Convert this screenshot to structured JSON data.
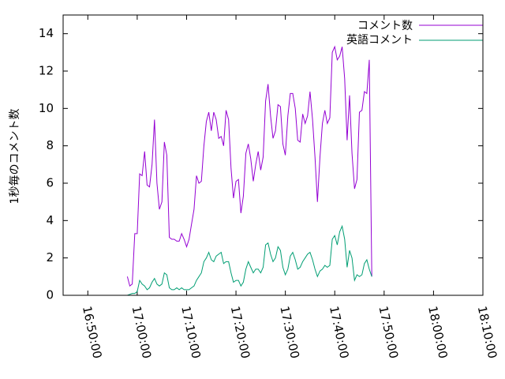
{
  "chart_data": {
    "type": "line",
    "title": "",
    "xlabel": "",
    "ylabel": "1秒毎のコメント数",
    "xlim": [
      "16:45:00",
      "18:10:00"
    ],
    "ylim": [
      0,
      15
    ],
    "x_ticks": [
      "16:50:00",
      "17:00:00",
      "17:10:00",
      "17:20:00",
      "17:30:00",
      "17:40:00",
      "17:50:00",
      "18:00:00",
      "18:10:00"
    ],
    "y_ticks": [
      "0",
      "2",
      "4",
      "6",
      "8",
      "10",
      "12",
      "14"
    ],
    "legend_position": "top-right",
    "grid": false,
    "series": [
      {
        "name": "コメント数",
        "color": "#9400d3",
        "points": [
          [
            "16:58:00",
            1.0
          ],
          [
            "16:58:30",
            0.5
          ],
          [
            "16:59:00",
            0.6
          ],
          [
            "16:59:30",
            3.3
          ],
          [
            "17:00:00",
            3.3
          ],
          [
            "17:00:30",
            6.5
          ],
          [
            "17:01:00",
            6.4
          ],
          [
            "17:01:30",
            7.7
          ],
          [
            "17:02:00",
            5.9
          ],
          [
            "17:02:30",
            5.8
          ],
          [
            "17:03:00",
            7.0
          ],
          [
            "17:03:30",
            9.4
          ],
          [
            "17:04:00",
            6.0
          ],
          [
            "17:04:30",
            4.6
          ],
          [
            "17:05:00",
            5.0
          ],
          [
            "17:05:30",
            8.2
          ],
          [
            "17:06:00",
            7.5
          ],
          [
            "17:06:30",
            3.1
          ],
          [
            "17:07:00",
            3.0
          ],
          [
            "17:07:30",
            3.0
          ],
          [
            "17:08:00",
            2.9
          ],
          [
            "17:08:30",
            2.9
          ],
          [
            "17:09:00",
            3.3
          ],
          [
            "17:09:30",
            3.0
          ],
          [
            "17:10:00",
            2.6
          ],
          [
            "17:10:30",
            3.0
          ],
          [
            "17:11:00",
            3.8
          ],
          [
            "17:11:30",
            4.6
          ],
          [
            "17:12:00",
            6.4
          ],
          [
            "17:12:30",
            6.0
          ],
          [
            "17:13:00",
            6.1
          ],
          [
            "17:13:30",
            8.0
          ],
          [
            "17:14:00",
            9.3
          ],
          [
            "17:14:30",
            9.8
          ],
          [
            "17:15:00",
            8.8
          ],
          [
            "17:15:30",
            9.8
          ],
          [
            "17:16:00",
            9.4
          ],
          [
            "17:16:30",
            8.4
          ],
          [
            "17:17:00",
            8.5
          ],
          [
            "17:17:30",
            8.0
          ],
          [
            "17:18:00",
            9.9
          ],
          [
            "17:18:30",
            9.4
          ],
          [
            "17:19:00",
            6.8
          ],
          [
            "17:19:30",
            5.2
          ],
          [
            "17:20:00",
            6.1
          ],
          [
            "17:20:30",
            6.2
          ],
          [
            "17:21:00",
            4.4
          ],
          [
            "17:21:30",
            5.3
          ],
          [
            "17:22:00",
            7.6
          ],
          [
            "17:22:30",
            8.1
          ],
          [
            "17:23:00",
            7.3
          ],
          [
            "17:23:30",
            6.1
          ],
          [
            "17:24:00",
            7.0
          ],
          [
            "17:24:30",
            7.7
          ],
          [
            "17:25:00",
            6.7
          ],
          [
            "17:25:30",
            7.4
          ],
          [
            "17:26:00",
            10.4
          ],
          [
            "17:26:30",
            11.3
          ],
          [
            "17:27:00",
            9.6
          ],
          [
            "17:27:30",
            8.4
          ],
          [
            "17:28:00",
            8.8
          ],
          [
            "17:28:30",
            10.2
          ],
          [
            "17:29:00",
            10.1
          ],
          [
            "17:29:30",
            8.1
          ],
          [
            "17:30:00",
            7.5
          ],
          [
            "17:30:30",
            9.6
          ],
          [
            "17:31:00",
            10.8
          ],
          [
            "17:31:30",
            10.8
          ],
          [
            "17:32:00",
            10.0
          ],
          [
            "17:32:30",
            8.3
          ],
          [
            "17:33:00",
            8.2
          ],
          [
            "17:33:30",
            9.7
          ],
          [
            "17:34:00",
            9.2
          ],
          [
            "17:34:30",
            9.6
          ],
          [
            "17:35:00",
            10.9
          ],
          [
            "17:35:30",
            9.4
          ],
          [
            "17:36:00",
            7.4
          ],
          [
            "17:36:30",
            5.0
          ],
          [
            "17:37:00",
            7.4
          ],
          [
            "17:37:30",
            9.2
          ],
          [
            "17:38:00",
            9.9
          ],
          [
            "17:38:30",
            9.2
          ],
          [
            "17:39:00",
            9.5
          ],
          [
            "17:39:30",
            13.0
          ],
          [
            "17:40:00",
            13.3
          ],
          [
            "17:40:30",
            12.6
          ],
          [
            "17:41:00",
            12.8
          ],
          [
            "17:41:30",
            13.3
          ],
          [
            "17:42:00",
            11.6
          ],
          [
            "17:42:30",
            8.3
          ],
          [
            "17:43:00",
            10.7
          ],
          [
            "17:43:30",
            7.6
          ],
          [
            "17:44:00",
            5.7
          ],
          [
            "17:44:30",
            6.2
          ],
          [
            "17:45:00",
            9.8
          ],
          [
            "17:45:30",
            9.9
          ],
          [
            "17:46:00",
            10.9
          ],
          [
            "17:46:30",
            10.8
          ],
          [
            "17:47:00",
            12.6
          ],
          [
            "17:47:30",
            1.0
          ]
        ]
      },
      {
        "name": "英語コメント",
        "color": "#009e73",
        "points": [
          [
            "16:58:00",
            0.0
          ],
          [
            "16:58:30",
            0.05
          ],
          [
            "16:59:00",
            0.1
          ],
          [
            "16:59:30",
            0.1
          ],
          [
            "17:00:00",
            0.2
          ],
          [
            "17:00:30",
            0.8
          ],
          [
            "17:01:00",
            0.6
          ],
          [
            "17:01:30",
            0.5
          ],
          [
            "17:02:00",
            0.3
          ],
          [
            "17:02:30",
            0.4
          ],
          [
            "17:03:00",
            0.7
          ],
          [
            "17:03:30",
            0.9
          ],
          [
            "17:04:00",
            0.6
          ],
          [
            "17:04:30",
            0.5
          ],
          [
            "17:05:00",
            0.6
          ],
          [
            "17:05:30",
            1.2
          ],
          [
            "17:06:00",
            1.1
          ],
          [
            "17:06:30",
            0.4
          ],
          [
            "17:07:00",
            0.3
          ],
          [
            "17:07:30",
            0.3
          ],
          [
            "17:08:00",
            0.4
          ],
          [
            "17:08:30",
            0.3
          ],
          [
            "17:09:00",
            0.4
          ],
          [
            "17:09:30",
            0.3
          ],
          [
            "17:10:00",
            0.3
          ],
          [
            "17:10:30",
            0.3
          ],
          [
            "17:11:00",
            0.4
          ],
          [
            "17:11:30",
            0.5
          ],
          [
            "17:12:00",
            0.8
          ],
          [
            "17:12:30",
            1.0
          ],
          [
            "17:13:00",
            1.2
          ],
          [
            "17:13:30",
            1.8
          ],
          [
            "17:14:00",
            2.0
          ],
          [
            "17:14:30",
            2.3
          ],
          [
            "17:15:00",
            1.9
          ],
          [
            "17:15:30",
            1.8
          ],
          [
            "17:16:00",
            2.1
          ],
          [
            "17:16:30",
            2.2
          ],
          [
            "17:17:00",
            2.3
          ],
          [
            "17:17:30",
            1.7
          ],
          [
            "17:18:00",
            1.8
          ],
          [
            "17:18:30",
            1.8
          ],
          [
            "17:19:00",
            1.2
          ],
          [
            "17:19:30",
            0.7
          ],
          [
            "17:20:00",
            0.8
          ],
          [
            "17:20:30",
            0.8
          ],
          [
            "17:21:00",
            0.5
          ],
          [
            "17:21:30",
            0.7
          ],
          [
            "17:22:00",
            1.4
          ],
          [
            "17:22:30",
            1.8
          ],
          [
            "17:23:00",
            1.5
          ],
          [
            "17:23:30",
            1.2
          ],
          [
            "17:24:00",
            1.4
          ],
          [
            "17:24:30",
            1.4
          ],
          [
            "17:25:00",
            1.2
          ],
          [
            "17:25:30",
            1.5
          ],
          [
            "17:26:00",
            2.7
          ],
          [
            "17:26:30",
            2.8
          ],
          [
            "17:27:00",
            2.2
          ],
          [
            "17:27:30",
            1.8
          ],
          [
            "17:28:00",
            2.0
          ],
          [
            "17:28:30",
            2.6
          ],
          [
            "17:29:00",
            2.4
          ],
          [
            "17:29:30",
            1.5
          ],
          [
            "17:30:00",
            1.1
          ],
          [
            "17:30:30",
            1.4
          ],
          [
            "17:31:00",
            2.1
          ],
          [
            "17:31:30",
            2.3
          ],
          [
            "17:32:00",
            1.9
          ],
          [
            "17:32:30",
            1.4
          ],
          [
            "17:33:00",
            1.5
          ],
          [
            "17:33:30",
            1.8
          ],
          [
            "17:34:00",
            2.0
          ],
          [
            "17:34:30",
            2.2
          ],
          [
            "17:35:00",
            2.3
          ],
          [
            "17:35:30",
            1.9
          ],
          [
            "17:36:00",
            1.4
          ],
          [
            "17:36:30",
            1.0
          ],
          [
            "17:37:00",
            1.3
          ],
          [
            "17:37:30",
            1.4
          ],
          [
            "17:38:00",
            1.6
          ],
          [
            "17:38:30",
            1.5
          ],
          [
            "17:39:00",
            1.6
          ],
          [
            "17:39:30",
            3.0
          ],
          [
            "17:40:00",
            3.2
          ],
          [
            "17:40:30",
            2.7
          ],
          [
            "17:41:00",
            3.4
          ],
          [
            "17:41:30",
            3.7
          ],
          [
            "17:42:00",
            3.0
          ],
          [
            "17:42:30",
            1.5
          ],
          [
            "17:43:00",
            2.4
          ],
          [
            "17:43:30",
            2.0
          ],
          [
            "17:44:00",
            0.8
          ],
          [
            "17:44:30",
            1.1
          ],
          [
            "17:45:00",
            1.0
          ],
          [
            "17:45:30",
            1.1
          ],
          [
            "17:46:00",
            1.7
          ],
          [
            "17:46:30",
            1.9
          ],
          [
            "17:47:00",
            1.4
          ],
          [
            "17:47:30",
            1.0
          ]
        ]
      }
    ]
  }
}
